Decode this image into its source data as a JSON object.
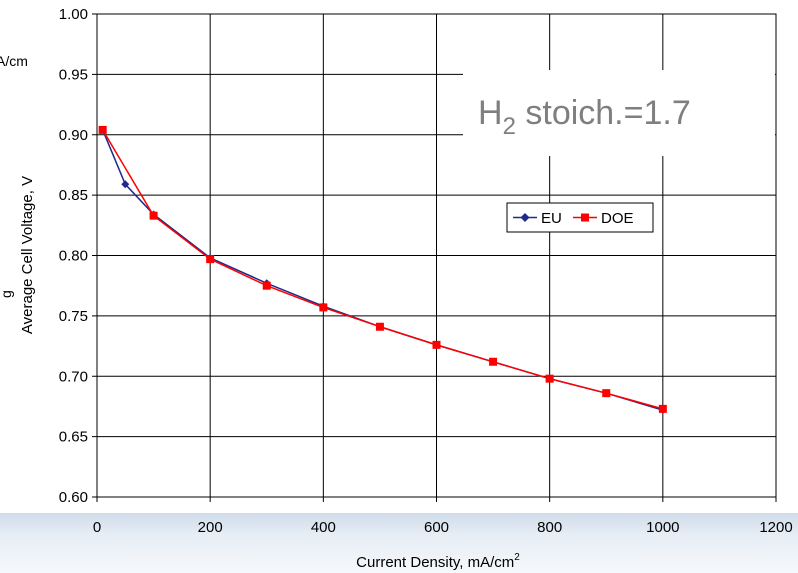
{
  "chart_data": {
    "type": "line",
    "title": "",
    "xlabel": "Current Density, mA/cm",
    "xlabel_sup": "2",
    "ylabel": "Average Cell Voltage, V",
    "xlim": [
      0,
      1200
    ],
    "ylim": [
      0.6,
      1.0
    ],
    "x_ticks": [
      "0",
      "200",
      "400",
      "600",
      "800",
      "1000",
      "1200"
    ],
    "y_ticks": [
      "0.60",
      "0.65",
      "0.70",
      "0.75",
      "0.80",
      "0.85",
      "0.90",
      "0.95",
      "1.00"
    ],
    "grid": true,
    "legend_position": "middle-right",
    "series": [
      {
        "name": "EU",
        "color": "#1f2a8c",
        "marker": "diamond",
        "points": [
          [
            10,
            0.904
          ],
          [
            50,
            0.859
          ],
          [
            100,
            0.834
          ],
          [
            200,
            0.798
          ],
          [
            300,
            0.777
          ],
          [
            400,
            0.758
          ],
          [
            500,
            0.741
          ],
          [
            600,
            0.726
          ],
          [
            700,
            0.712
          ],
          [
            800,
            0.698
          ],
          [
            900,
            0.686
          ],
          [
            1000,
            0.672
          ]
        ]
      },
      {
        "name": "DOE",
        "color": "#ff0000",
        "marker": "square",
        "points": [
          [
            10,
            0.904
          ],
          [
            100,
            0.833
          ],
          [
            200,
            0.797
          ],
          [
            300,
            0.775
          ],
          [
            400,
            0.757
          ],
          [
            500,
            0.741
          ],
          [
            600,
            0.726
          ],
          [
            700,
            0.712
          ],
          [
            800,
            0.698
          ],
          [
            900,
            0.686
          ],
          [
            1000,
            0.673
          ]
        ]
      }
    ],
    "annotation": {
      "prefix": "H",
      "subscript": "2",
      "suffix": " stoich.=1.7"
    }
  },
  "clipped_text": {
    "left_fragment": "A/cm",
    "left_small": "g"
  }
}
